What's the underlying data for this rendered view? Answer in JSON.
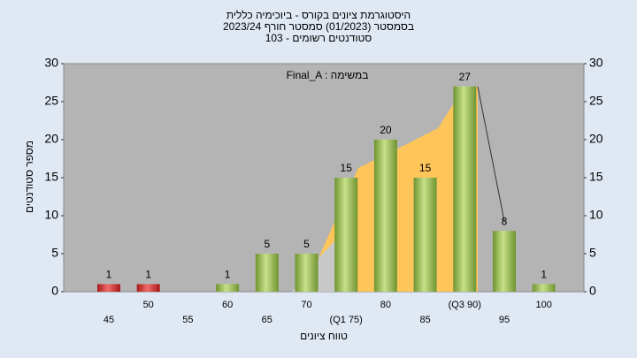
{
  "chart_data": {
    "type": "bar",
    "title": "היסטוגרמת ציונים בקורס - ביוכימיה כללית",
    "subtitle": [
      "בסמסטר  (01/2023)  סמסטר חורף 2023/24",
      "סטודנטים רשומים - 103"
    ],
    "annotation": "Final_A : במשימה",
    "x_label": "טווח ציונים",
    "y_label": "מספר סטודנטים",
    "categories": [
      "45",
      "50",
      "55",
      "60",
      "65",
      "70",
      "(Q1 75)",
      "80",
      "85",
      "(Q3 90)",
      "95",
      "100"
    ],
    "values": [
      1,
      1,
      0,
      1,
      5,
      5,
      15,
      20,
      15,
      27,
      8,
      1
    ],
    "value_labels": [
      "1",
      "1",
      null,
      "1",
      "5",
      "5",
      "15",
      "20",
      "15",
      "27",
      "8",
      "1"
    ],
    "colors": [
      "#d42a2a",
      "#d42a2a",
      "#8db34a",
      "#8db34a",
      "#8db34a",
      "#8db34a",
      "#8db34a",
      "#8db34a",
      "#8db34a",
      "#8db34a",
      "#8db34a",
      "#8db34a"
    ],
    "ylim": [
      0,
      30
    ],
    "yticks": [
      0,
      5,
      10,
      15,
      20,
      25,
      30
    ],
    "y2lim": [
      0,
      30
    ],
    "y2ticks": [
      0,
      5,
      10,
      15,
      20,
      25,
      30
    ]
  }
}
